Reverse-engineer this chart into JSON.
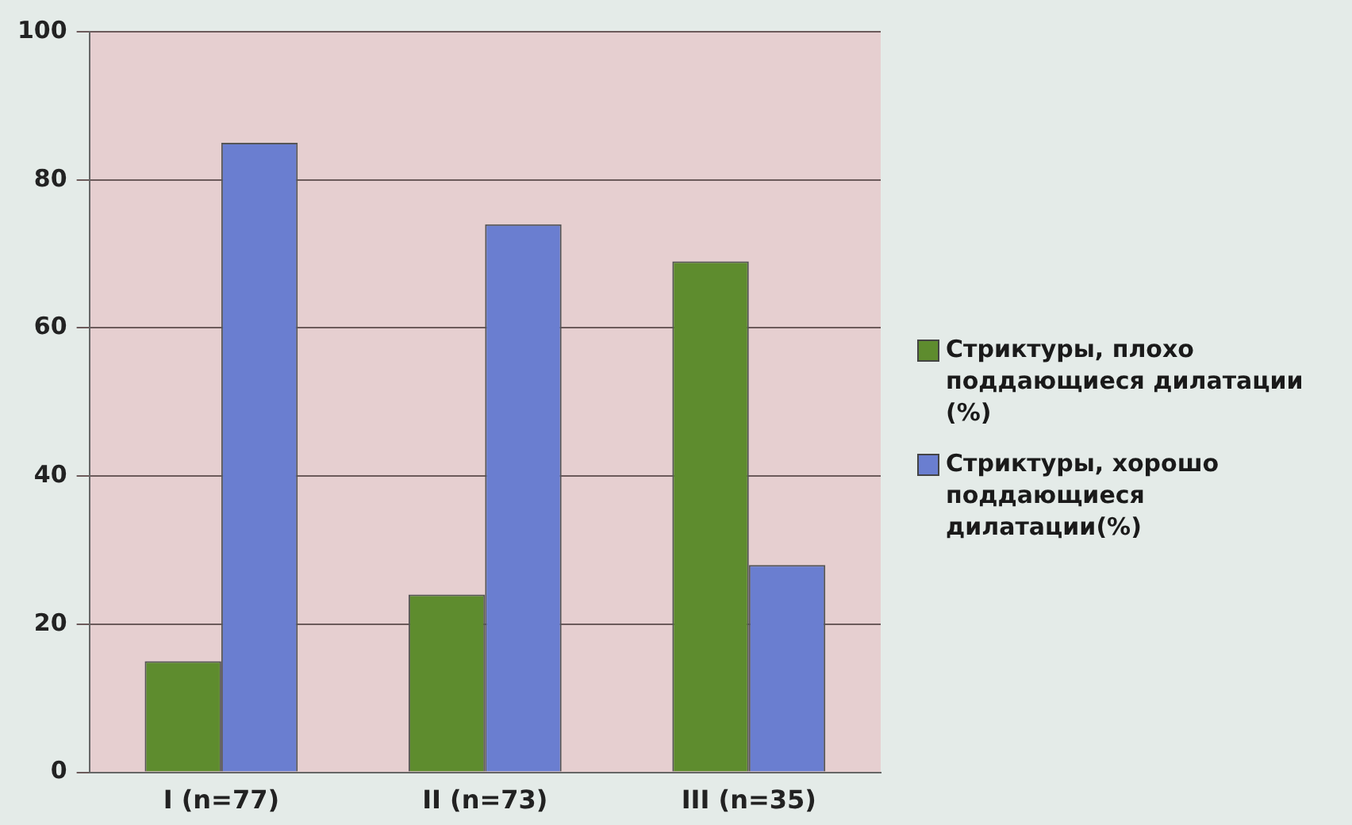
{
  "chart_data": {
    "type": "bar",
    "categories": [
      "I (n=77)",
      "II (n=73)",
      "III (n=35)"
    ],
    "series": [
      {
        "name": "Стриктуры, плохо поддающиеся дилатации (%)",
        "color": "#5e8c2e",
        "values": [
          15,
          24,
          69
        ]
      },
      {
        "name": "Стриктуры, хорошо поддающиеся дилатации(%)",
        "color": "#6a7ed0",
        "values": [
          85,
          74,
          28
        ]
      }
    ],
    "ylim": [
      0,
      100
    ],
    "yticks": [
      0,
      20,
      40,
      60,
      80,
      100
    ],
    "grid": "y",
    "legend": "right"
  }
}
